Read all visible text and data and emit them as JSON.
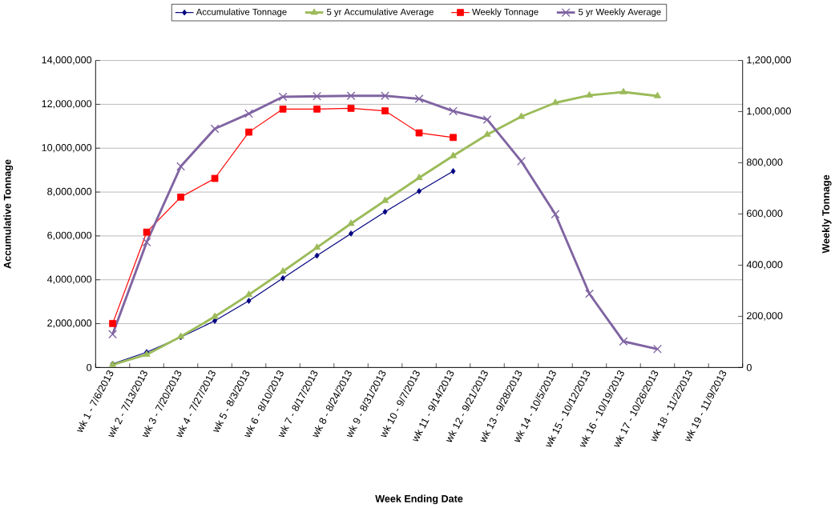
{
  "chart_data": {
    "type": "line",
    "xlabel": "Week Ending Date",
    "ylabel": "Accumulative Tonnage",
    "y2label": "Weekly Tonnage",
    "categories": [
      "wk 1 - 7/6/2013",
      "wk 2 - 7/13/2013",
      "wk 3 - 7/20/2013",
      "wk 4 - 7/27/2013",
      "wk 5 - 8/3/2013",
      "wk 6 - 8/10/2013",
      "wk 7 - 8/17/2013",
      "wk 8 - 8/24/2013",
      "wk 9 - 8/31/2013",
      "wk 10 - 9/7/2013",
      "wk 11 - 9/14/2013",
      "wk 12 - 9/21/2013",
      "wk 13 - 9/28/2013",
      "wk 14 - 10/5/2013",
      "wk 15 - 10/12/2013",
      "wk 16 - 10/19/2013",
      "wk 17 - 10/26/2013",
      "wk 18 - 11/2/2013",
      "wk 19 - 11/9/2013"
    ],
    "series": [
      {
        "name": "Accumulative Tonnage",
        "color": "#000080",
        "marker": "diamond",
        "values": [
          170000,
          700000,
          1380000,
          2130000,
          3040000,
          4070000,
          5100000,
          6110000,
          7100000,
          8040000,
          8950000,
          null,
          null,
          null,
          null,
          null,
          null,
          null,
          null
        ]
      },
      {
        "name": "5 yr Accumulative Average",
        "color": "#9bbb59",
        "marker": "triangle",
        "values": [
          130000,
          590000,
          1410000,
          2320000,
          3320000,
          4380000,
          5470000,
          6560000,
          7610000,
          8650000,
          9650000,
          10620000,
          11440000,
          12070000,
          12410000,
          12560000,
          12380000,
          null,
          null
        ]
      },
      {
        "name": "Weekly Tonnage",
        "color": "#ff0000",
        "marker": "square",
        "axis": "y2",
        "values": [
          172000,
          529000,
          666000,
          739000,
          920000,
          1010000,
          1010000,
          1013000,
          1003000,
          917000,
          899000,
          null,
          null,
          null,
          null,
          null,
          null,
          null,
          null
        ]
      },
      {
        "name": "5 yr Weekly Average",
        "color": "#8064a2",
        "marker": "cross",
        "axis": "y2",
        "values": [
          130000,
          490000,
          786000,
          933000,
          992000,
          1058000,
          1060000,
          1062000,
          1062000,
          1050000,
          1002000,
          969000,
          806000,
          599000,
          288000,
          102000,
          72000,
          null,
          null
        ]
      }
    ],
    "ylim": [
      0,
      14000000
    ],
    "yticks": [
      {
        "value": 0,
        "label": "0"
      },
      {
        "value": 2000000,
        "label": "2,000,000"
      },
      {
        "value": 4000000,
        "label": "4,000,000"
      },
      {
        "value": 6000000,
        "label": "6,000,000"
      },
      {
        "value": 8000000,
        "label": "8,000,000"
      },
      {
        "value": 10000000,
        "label": "10,000,000"
      },
      {
        "value": 12000000,
        "label": "12,000,000"
      },
      {
        "value": 14000000,
        "label": "14,000,000"
      }
    ],
    "y2lim": [
      0,
      1200000
    ],
    "y2ticks": [
      {
        "value": 0,
        "label": "0"
      },
      {
        "value": 200000,
        "label": "200,000"
      },
      {
        "value": 400000,
        "label": "400,000"
      },
      {
        "value": 600000,
        "label": "600,000"
      },
      {
        "value": 800000,
        "label": "800,000"
      },
      {
        "value": 1000000,
        "label": "1,000,000"
      },
      {
        "value": 1200000,
        "label": "1,200,000"
      }
    ],
    "grid": "y",
    "legend": "top",
    "line_style": "solid"
  }
}
